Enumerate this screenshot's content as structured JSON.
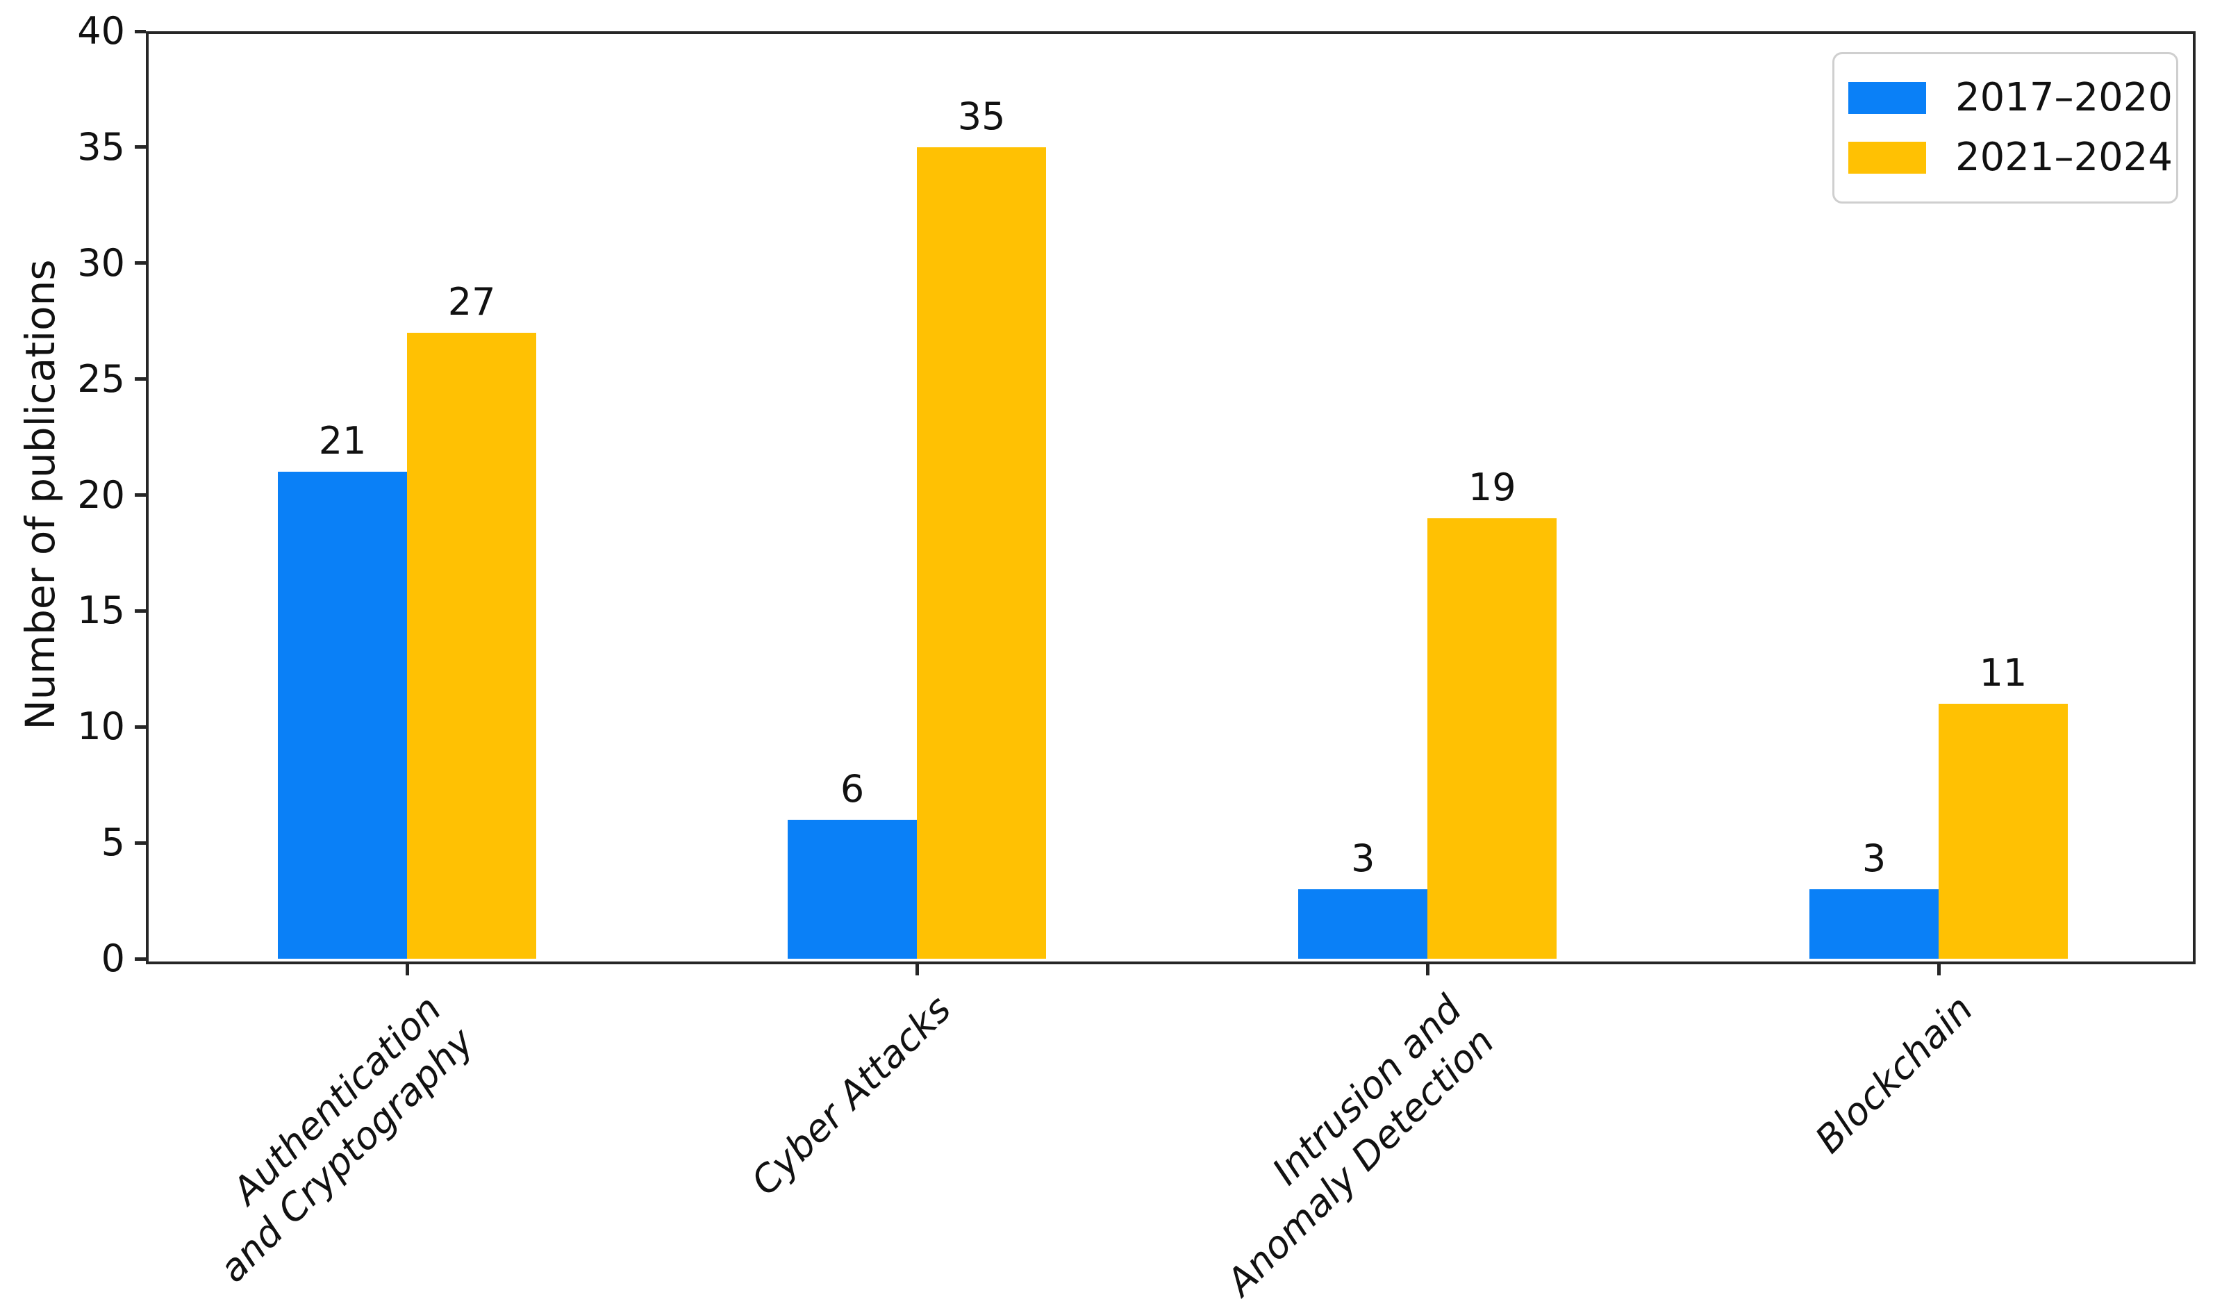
{
  "figure": {
    "background": "#ffffff",
    "axis_color": "#262626",
    "text_color": "#111111"
  },
  "chart_data": {
    "type": "bar",
    "title": "",
    "xlabel": "",
    "ylabel": "Number of publications",
    "categories": [
      "Authentication\nand Cryptography",
      "Cyber Attacks",
      "Intrusion and\nAnomaly Detection",
      "Blockchain"
    ],
    "series": [
      {
        "name": "2017–2020",
        "color": "#0a80f7",
        "values": [
          21,
          6,
          3,
          3
        ]
      },
      {
        "name": "2021–2024",
        "color": "#ffc103",
        "values": [
          27,
          35,
          19,
          11
        ]
      }
    ],
    "ylim": [
      0,
      40
    ],
    "y_ticks": [
      0,
      5,
      10,
      15,
      20,
      25,
      30,
      35,
      40
    ],
    "grid": false,
    "legend_position": "upper right",
    "show_value_labels": true
  }
}
